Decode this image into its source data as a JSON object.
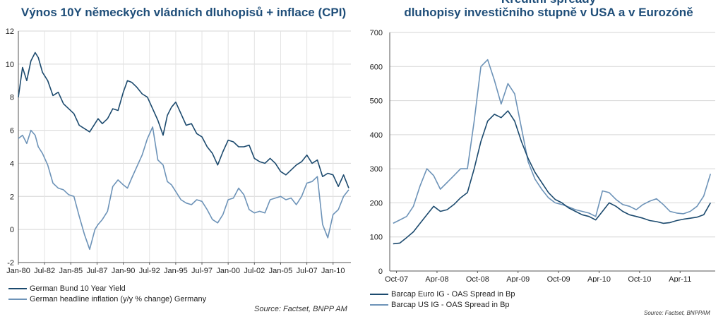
{
  "left": {
    "title": "Výnos 10Y německých vládních dluhopisů  + inflace (CPI)",
    "legend": [
      "German Bund 10 Year Yield",
      "German headline inflation (y/y % change) Germany"
    ],
    "source": "Source: Factset, BNPP AM"
  },
  "right": {
    "title_line1": "Kreditní spready",
    "title_line2": "dluhopisy investičního stupně v USA a v Eurozóně",
    "legend": [
      "Barcap Euro IG - OAS Spread in Bp",
      "Barcap US IG - OAS Spread in Bp"
    ],
    "source": "Source: Factset, BNPPAM"
  },
  "colors": {
    "dark_series": "#1c4a6e",
    "light_series": "#6d93b8",
    "title": "#1f4e79"
  },
  "chart_data": [
    {
      "type": "line",
      "title": "Výnos 10Y německých vládních dluhopisů  + inflace (CPI)",
      "x_tick_labels": [
        "Jan-80",
        "Jul-82",
        "Jan-85",
        "Jul-87",
        "Jan-90",
        "Jul-92",
        "Jan-95",
        "Jul-97",
        "Jan-00",
        "Jul-02",
        "Jan-05",
        "Jul-07",
        "Jan-10"
      ],
      "x_tick_positions": [
        1980.0,
        1982.5,
        1985.0,
        1987.5,
        1990.0,
        1992.5,
        1995.0,
        1997.5,
        2000.0,
        2002.5,
        2005.0,
        2007.5,
        2010.0
      ],
      "xlim": [
        1980.0,
        2011.7
      ],
      "ylim": [
        -2,
        12
      ],
      "y_ticks": [
        -2,
        0,
        2,
        4,
        6,
        8,
        10,
        12
      ],
      "grid": true,
      "series": [
        {
          "name": "German Bund 10 Year Yield",
          "x": [
            1980.0,
            1980.4,
            1980.8,
            1981.2,
            1981.6,
            1981.9,
            1982.3,
            1982.8,
            1983.3,
            1983.8,
            1984.3,
            1984.8,
            1985.3,
            1985.8,
            1986.3,
            1986.8,
            1987.3,
            1987.6,
            1988.0,
            1988.5,
            1989.0,
            1989.5,
            1990.0,
            1990.4,
            1990.8,
            1991.3,
            1991.8,
            1992.3,
            1992.8,
            1993.3,
            1993.8,
            1994.2,
            1994.6,
            1995.0,
            1995.5,
            1996.0,
            1996.5,
            1997.0,
            1997.5,
            1998.0,
            1998.5,
            1999.0,
            1999.5,
            2000.0,
            2000.5,
            2001.0,
            2001.5,
            2002.0,
            2002.5,
            2003.0,
            2003.5,
            2004.0,
            2004.5,
            2005.0,
            2005.5,
            2006.0,
            2006.5,
            2007.0,
            2007.5,
            2008.0,
            2008.5,
            2009.0,
            2009.5,
            2010.0,
            2010.5,
            2011.0,
            2011.5
          ],
          "y": [
            8.0,
            9.8,
            9.0,
            10.2,
            10.7,
            10.4,
            9.5,
            9.0,
            8.1,
            8.3,
            7.6,
            7.3,
            7.0,
            6.3,
            6.1,
            5.9,
            6.4,
            6.7,
            6.4,
            6.7,
            7.3,
            7.2,
            8.3,
            9.0,
            8.9,
            8.6,
            8.2,
            8.0,
            7.3,
            6.6,
            5.7,
            6.9,
            7.4,
            7.7,
            7.0,
            6.3,
            6.4,
            5.8,
            5.6,
            5.0,
            4.6,
            3.9,
            4.7,
            5.4,
            5.3,
            5.0,
            5.0,
            5.1,
            4.3,
            4.1,
            4.0,
            4.3,
            4.0,
            3.5,
            3.3,
            3.6,
            3.9,
            4.1,
            4.5,
            4.0,
            4.2,
            3.2,
            3.4,
            3.3,
            2.6,
            3.3,
            2.5
          ]
        },
        {
          "name": "German headline inflation (y/y % change) Germany",
          "x": [
            1980.0,
            1980.4,
            1980.8,
            1981.2,
            1981.6,
            1981.9,
            1982.3,
            1982.8,
            1983.3,
            1983.8,
            1984.3,
            1984.8,
            1985.3,
            1985.8,
            1986.3,
            1986.8,
            1987.3,
            1987.6,
            1988.0,
            1988.5,
            1989.0,
            1989.5,
            1990.0,
            1990.4,
            1990.8,
            1991.3,
            1991.8,
            1992.3,
            1992.8,
            1993.3,
            1993.8,
            1994.2,
            1994.6,
            1995.0,
            1995.5,
            1996.0,
            1996.5,
            1997.0,
            1997.5,
            1998.0,
            1998.5,
            1999.0,
            1999.5,
            2000.0,
            2000.5,
            2001.0,
            2001.5,
            2002.0,
            2002.5,
            2003.0,
            2003.5,
            2004.0,
            2004.5,
            2005.0,
            2005.5,
            2006.0,
            2006.5,
            2007.0,
            2007.5,
            2008.0,
            2008.5,
            2009.0,
            2009.5,
            2010.0,
            2010.5,
            2011.0,
            2011.5
          ],
          "y": [
            5.5,
            5.7,
            5.2,
            6.0,
            5.7,
            5.0,
            4.6,
            3.9,
            2.8,
            2.5,
            2.4,
            2.1,
            2.0,
            0.8,
            -0.3,
            -1.2,
            0.0,
            0.3,
            0.6,
            1.1,
            2.6,
            3.0,
            2.7,
            2.5,
            3.1,
            3.8,
            4.5,
            5.5,
            6.2,
            4.2,
            3.9,
            2.9,
            2.7,
            2.3,
            1.8,
            1.6,
            1.5,
            1.8,
            1.7,
            1.2,
            0.6,
            0.4,
            0.9,
            1.8,
            1.9,
            2.5,
            2.1,
            1.2,
            1.0,
            1.1,
            1.0,
            1.8,
            1.9,
            2.0,
            1.8,
            1.9,
            1.5,
            2.0,
            2.8,
            2.9,
            3.2,
            0.3,
            -0.5,
            0.9,
            1.2,
            2.0,
            2.4
          ]
        }
      ]
    },
    {
      "type": "line",
      "title": "Kreditní spready dluhopisy investičního stupně v USA a v Eurozóně",
      "x_tick_labels": [
        "Oct-07",
        "Apr-08",
        "Oct-08",
        "Apr-09",
        "Oct-09",
        "Apr-10",
        "Oct-10",
        "Apr-11"
      ],
      "x_tick_positions": [
        0,
        6,
        12,
        18,
        24,
        30,
        36,
        42
      ],
      "x_unit": "months since Oct-07",
      "xlim": [
        -1,
        47.2
      ],
      "ylim": [
        0,
        700
      ],
      "y_ticks": [
        0,
        100,
        200,
        300,
        400,
        500,
        600,
        700
      ],
      "grid": true,
      "series": [
        {
          "name": "Barcap Euro IG - OAS Spread in Bp",
          "x": [
            -0.5,
            0.5,
            1.5,
            2.5,
            3.5,
            4.5,
            5.5,
            6.5,
            7.5,
            8.5,
            9.5,
            10.5,
            11.5,
            12.5,
            13.5,
            14.5,
            15.5,
            16.5,
            17.5,
            18.5,
            19.5,
            20.5,
            21.5,
            22.5,
            23.5,
            24.5,
            25.5,
            26.5,
            27.5,
            28.5,
            29.5,
            30.5,
            31.5,
            32.5,
            33.5,
            34.5,
            35.5,
            36.5,
            37.5,
            38.5,
            39.5,
            40.5,
            41.5,
            42.5,
            43.5,
            44.5,
            45.5,
            46.5
          ],
          "y": [
            80,
            82,
            98,
            115,
            140,
            165,
            190,
            175,
            180,
            195,
            215,
            230,
            300,
            380,
            440,
            460,
            450,
            470,
            440,
            380,
            330,
            290,
            260,
            230,
            210,
            200,
            185,
            175,
            165,
            160,
            150,
            175,
            200,
            190,
            175,
            165,
            160,
            155,
            148,
            145,
            140,
            142,
            148,
            152,
            155,
            158,
            165,
            200
          ]
        },
        {
          "name": "Barcap US IG - OAS Spread in Bp",
          "x": [
            -0.5,
            0.5,
            1.5,
            2.5,
            3.5,
            4.5,
            5.5,
            6.5,
            7.5,
            8.5,
            9.5,
            10.5,
            11.5,
            12.5,
            13.5,
            14.5,
            15.5,
            16.5,
            17.5,
            18.5,
            19.5,
            20.5,
            21.5,
            22.5,
            23.5,
            24.5,
            25.5,
            26.5,
            27.5,
            28.5,
            29.5,
            30.5,
            31.5,
            32.5,
            33.5,
            34.5,
            35.5,
            36.5,
            37.5,
            38.5,
            39.5,
            40.5,
            41.5,
            42.5,
            43.5,
            44.5,
            45.5,
            46.5
          ],
          "y": [
            140,
            150,
            160,
            190,
            250,
            300,
            280,
            240,
            260,
            280,
            300,
            300,
            440,
            600,
            620,
            560,
            490,
            550,
            520,
            420,
            320,
            270,
            240,
            215,
            200,
            195,
            188,
            180,
            175,
            170,
            160,
            235,
            230,
            210,
            195,
            190,
            180,
            195,
            205,
            212,
            195,
            175,
            170,
            168,
            175,
            190,
            220,
            285
          ]
        }
      ]
    }
  ]
}
